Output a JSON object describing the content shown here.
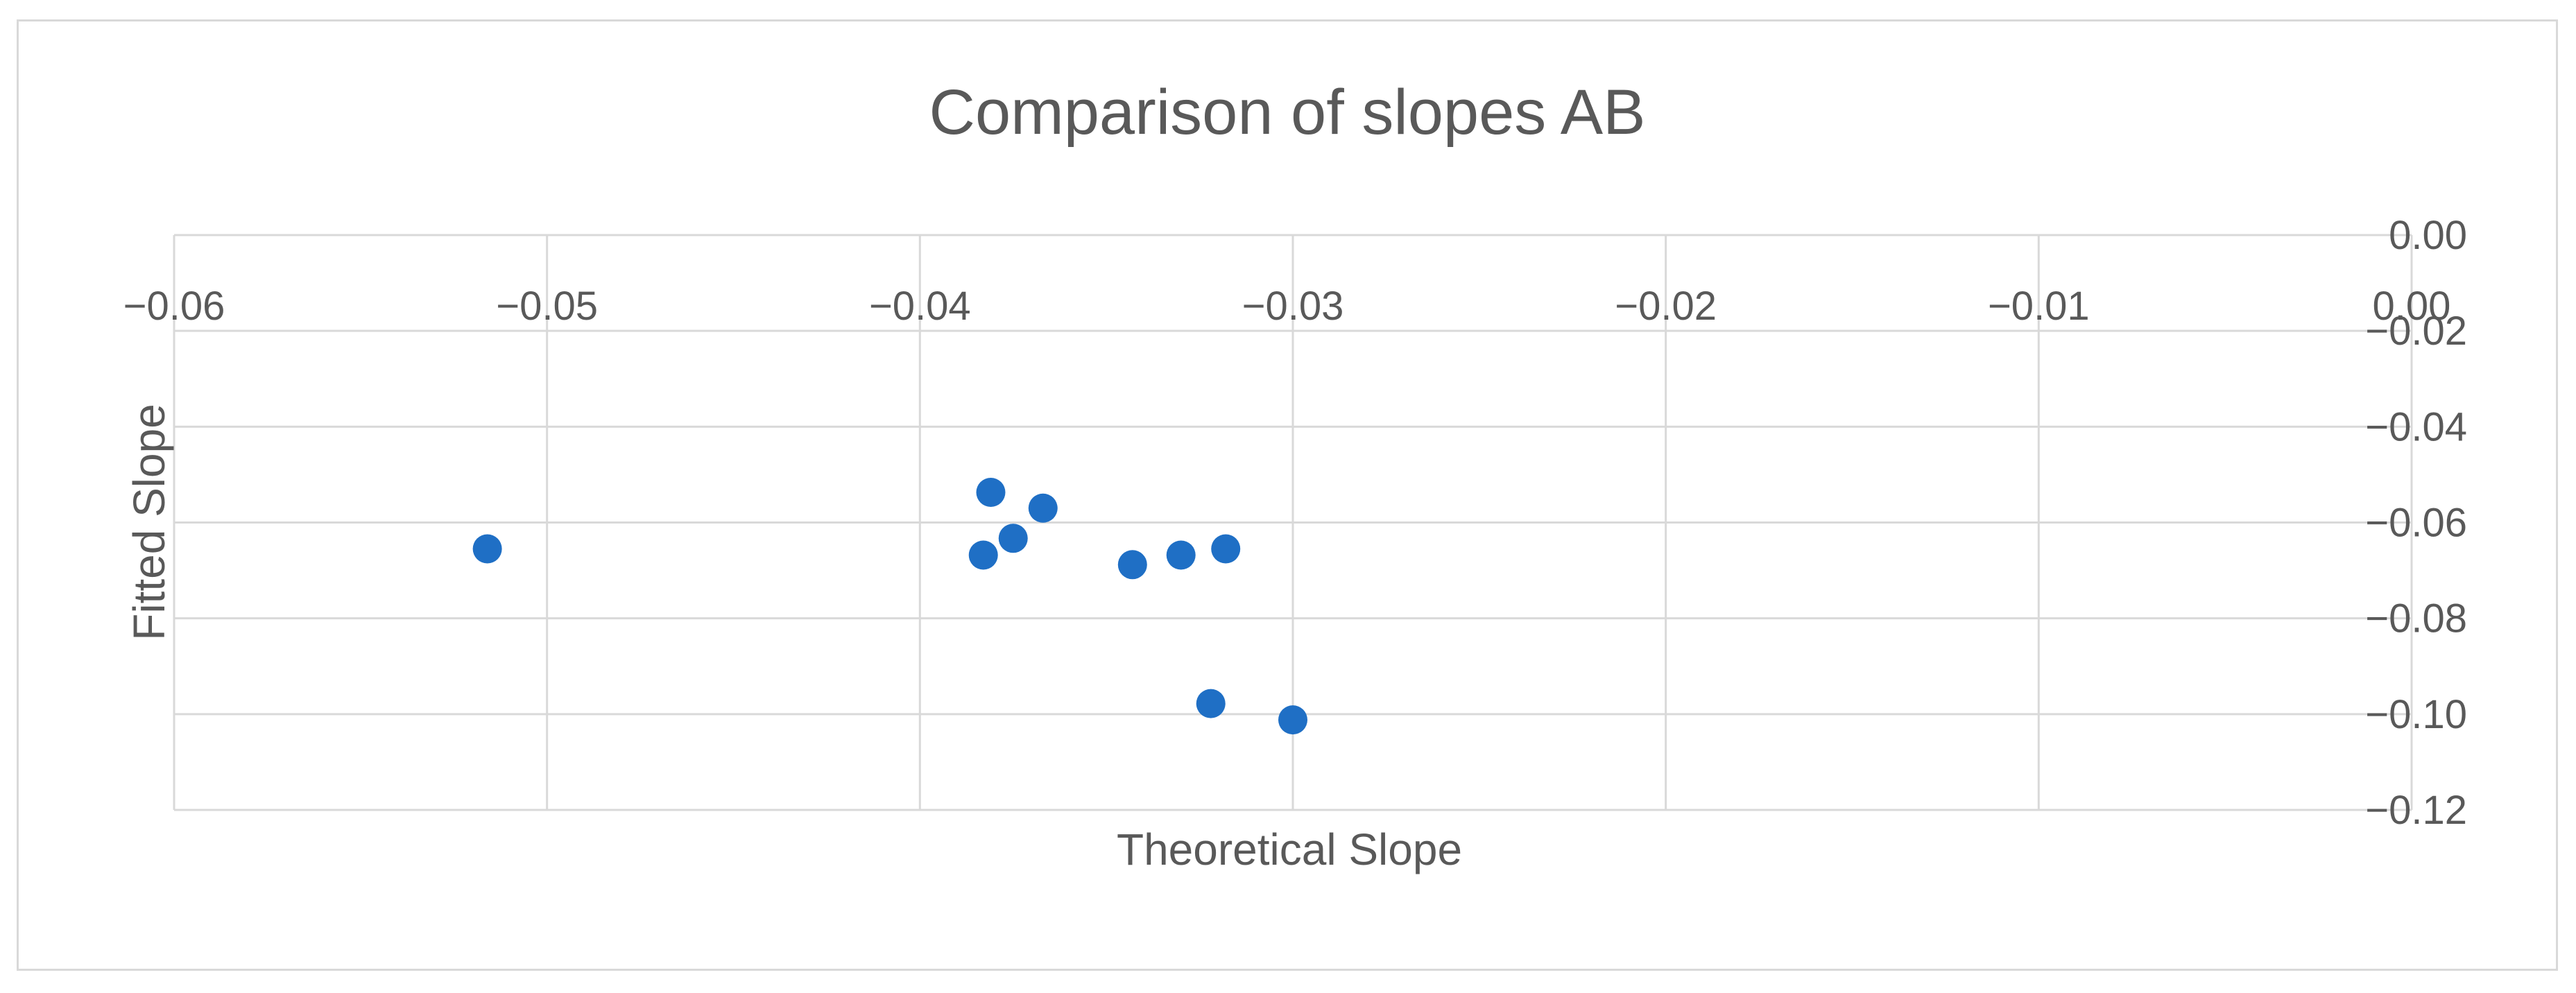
{
  "chart_data": {
    "type": "scatter",
    "title": "Comparison of slopes AB",
    "xlabel": "Theoretical Slope",
    "ylabel": "Fitted Slope",
    "xlim": [
      -0.06,
      0.0
    ],
    "ylim": [
      -0.12,
      0.0
    ],
    "x_ticks": [
      -0.06,
      -0.05,
      -0.04,
      -0.03,
      -0.02,
      -0.01,
      0.0
    ],
    "x_tick_labels": [
      "−0.06",
      "−0.05",
      "−0.04",
      "−0.03",
      "−0.02",
      "−0.01",
      "0.00"
    ],
    "y_ticks": [
      0.0,
      -0.02,
      -0.04,
      -0.06,
      -0.08,
      -0.1,
      -0.12
    ],
    "y_tick_labels": [
      "0.00",
      "−0.02",
      "−0.04",
      "−0.06",
      "−0.08",
      "−0.10",
      "−0.12"
    ],
    "x_axis_position": "top",
    "y_axis_position": "right",
    "grid": true,
    "legend": "none",
    "marker_color": "#1f6fc5",
    "gridline_color": "#d9d9d9",
    "text_color": "#595959",
    "series": [
      {
        "points": [
          {
            "x": -0.0516,
            "y": -0.0655
          },
          {
            "x": -0.0381,
            "y": -0.0537
          },
          {
            "x": -0.0383,
            "y": -0.0668
          },
          {
            "x": -0.0375,
            "y": -0.0633
          },
          {
            "x": -0.0367,
            "y": -0.057
          },
          {
            "x": -0.0343,
            "y": -0.0688
          },
          {
            "x": -0.033,
            "y": -0.0668
          },
          {
            "x": -0.0318,
            "y": -0.0655
          },
          {
            "x": -0.0322,
            "y": -0.0978
          },
          {
            "x": -0.03,
            "y": -0.1012
          }
        ]
      }
    ]
  }
}
